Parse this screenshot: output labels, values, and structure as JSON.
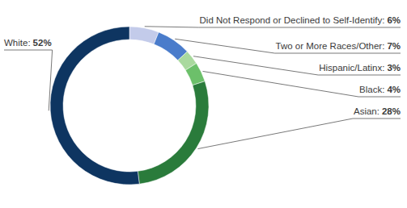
{
  "chart_data": {
    "type": "donut",
    "categories": [
      "Did Not Respond or Declined to Self-Identify:",
      "Two or More Races/Other:",
      "Hispanic/Latinx:",
      "Black:",
      "Asian:",
      "White:"
    ],
    "values": [
      6,
      7,
      3,
      4,
      28,
      52
    ],
    "value_labels": [
      "6%",
      "7%",
      "3%",
      "4%",
      "28%",
      "52%"
    ],
    "colors": [
      "#c3cbea",
      "#4a7ccb",
      "#a9d99e",
      "#6cc06a",
      "#2a7b3b",
      "#0e3561"
    ],
    "data_labels": true
  }
}
